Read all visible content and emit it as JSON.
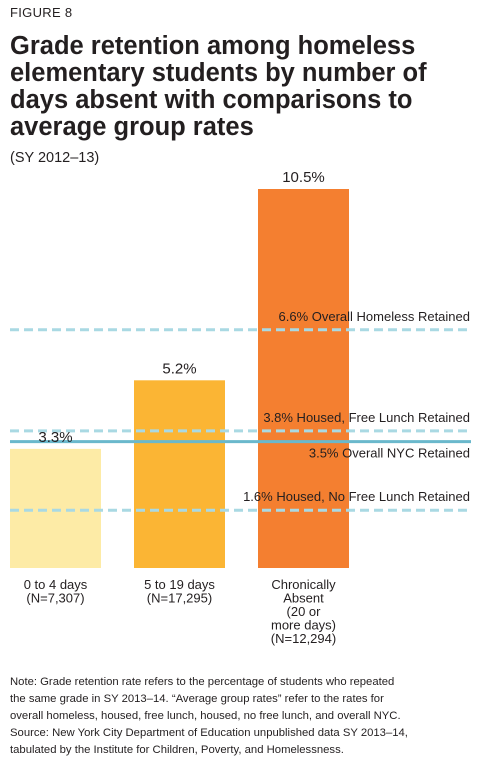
{
  "figure_label": "FIGURE 8",
  "chart_data": {
    "type": "bar",
    "title": "Grade retention among homeless elementary students by number of days absent with comparisons to average group rates",
    "subtitle": "(SY 2012–13)",
    "categories": [
      {
        "lines": [
          "0 to 4 days",
          "(N=7,307)"
        ]
      },
      {
        "lines": [
          "5 to 19 days",
          "(N=17,295)"
        ]
      },
      {
        "lines": [
          "Chronically",
          "Absent",
          "(20 or",
          "more days)",
          "(N=12,294)"
        ]
      }
    ],
    "values": [
      3.3,
      5.2,
      10.5
    ],
    "value_labels": [
      "3.3%",
      "5.2%",
      "10.5%"
    ],
    "bar_colors": [
      "#fdeba6",
      "#fbb534",
      "#f47f30"
    ],
    "unit": "%",
    "ylim": [
      0,
      10.5
    ],
    "reference_lines": [
      {
        "label": "6.6% Overall Homeless Retained",
        "value": 6.6,
        "style": "dashed",
        "color": "#a9d9e3"
      },
      {
        "label": "3.8% Housed, Free Lunch Retained",
        "value": 3.8,
        "style": "dashed",
        "color": "#a9d9e3"
      },
      {
        "label": "3.5% Overall NYC Retained",
        "value": 3.5,
        "style": "solid",
        "color": "#6ab8cc"
      },
      {
        "label": "1.6% Housed, No Free Lunch Retained",
        "value": 1.6,
        "style": "dashed",
        "color": "#a9d9e3"
      }
    ]
  },
  "note": [
    "Note: Grade retention rate refers to the percentage of students who repeated",
    "the same grade in SY 2013–14. “Average group rates” refer to the rates for",
    "overall homeless, housed, free lunch, housed, no free lunch, and overall NYC.",
    "Source: New York City Department of Education unpublished data SY 2013–14,",
    "tabulated by the Institute for Children, Poverty, and Homelessness."
  ]
}
